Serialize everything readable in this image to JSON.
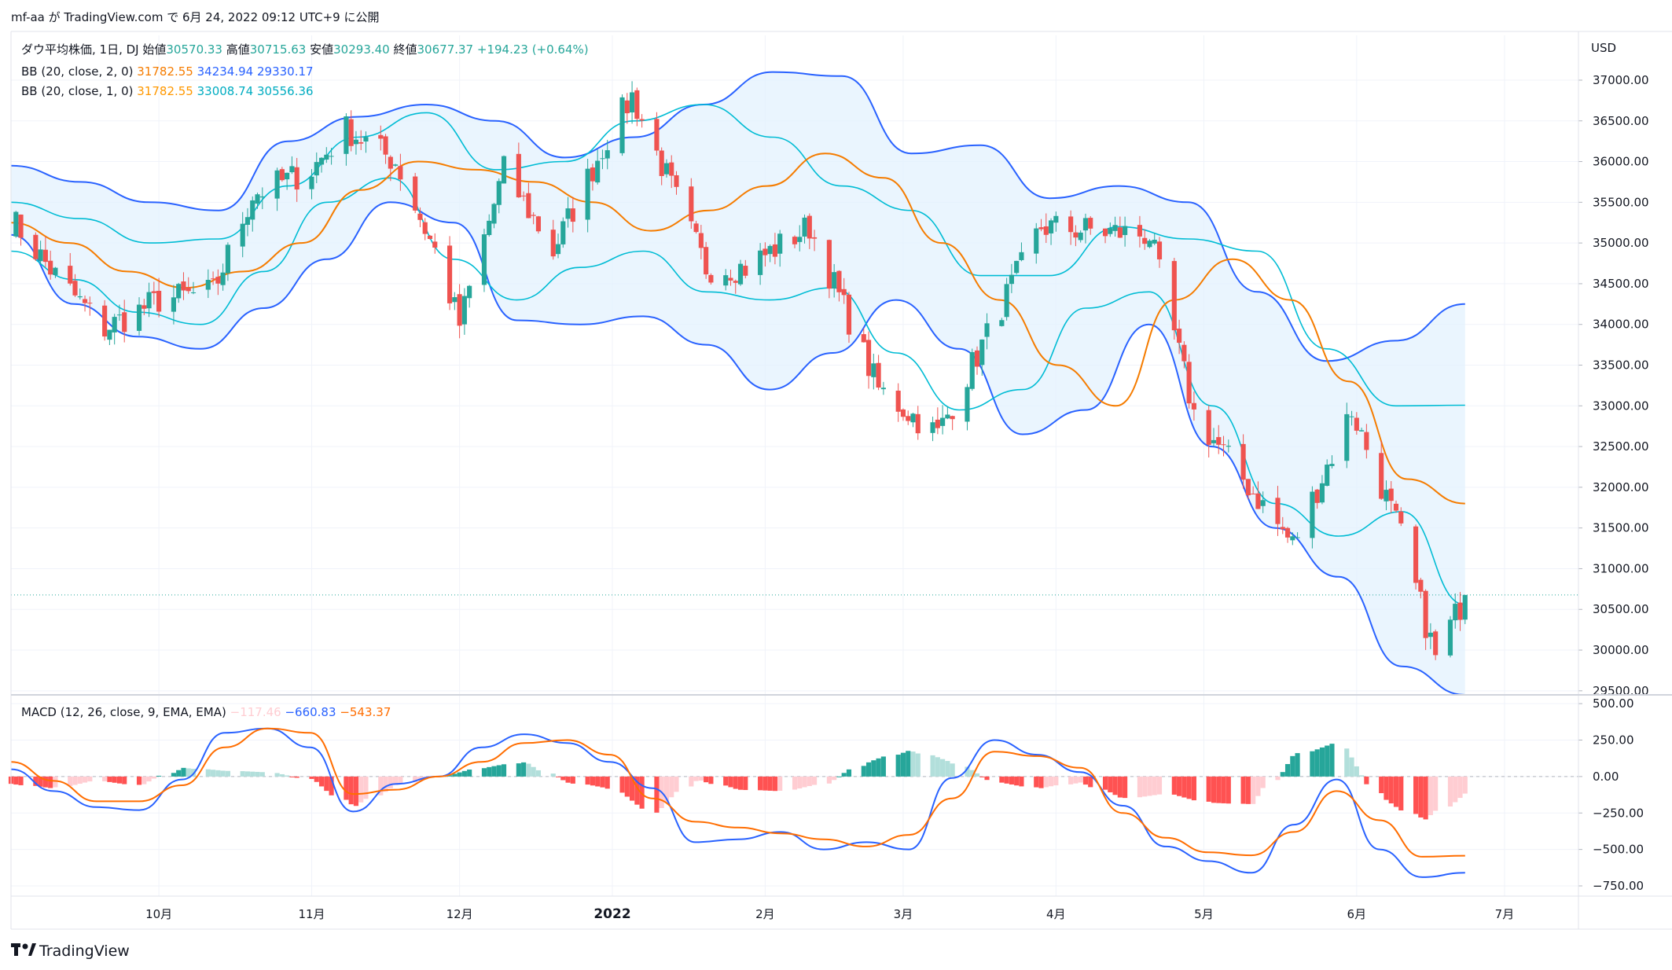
{
  "header": {
    "publish_text": "mf-aa が TradingView.com で 6月 24, 2022 09:12 UTC+9 に公開"
  },
  "legend": {
    "main": {
      "title": "ダウ平均株価, 1日, DJ",
      "open_label": "始値",
      "open_value": "30570.33",
      "high_label": "高値",
      "high_value": "30715.63",
      "low_label": "安値",
      "low_value": "30293.40",
      "close_label": "終値",
      "close_value": "30677.37",
      "change": "+194.23 (+0.64%)"
    },
    "bb2": {
      "label": "BB (20, close, 2, 0)",
      "basis": "31782.55",
      "upper": "34234.94",
      "lower": "29330.17"
    },
    "bb1": {
      "label": "BB (20, close, 1, 0)",
      "basis": "31782.55",
      "upper": "33008.74",
      "lower": "30556.36"
    },
    "macd": {
      "label": "MACD (12, 26, close, 9, EMA, EMA)",
      "hist": "−117.46",
      "macd": "−660.83",
      "signal": "−543.37"
    }
  },
  "footer": {
    "brand": "TradingView"
  },
  "colors": {
    "up": "#26a69a",
    "down": "#ef5350",
    "basis": "#f57c00",
    "bb2": "#2962ff",
    "bb1": "#00bcd4",
    "band_fill": "#e3f2fd",
    "macd_line": "#2962ff",
    "signal_line": "#ff6d00",
    "hist_up_strong": "#26a69a",
    "hist_up_weak": "#b2dfdb",
    "hist_down_strong": "#ff5252",
    "hist_down_weak": "#ffcdd2"
  },
  "chart_data": [
    {
      "type": "candlestick",
      "title": "ダウ平均株価, 1日, DJ",
      "currency": "USD",
      "ylim": [
        29450,
        37550
      ],
      "yticks": [
        "37000.00",
        "36500.00",
        "36000.00",
        "35500.00",
        "35000.00",
        "34500.00",
        "34000.00",
        "33500.00",
        "33000.00",
        "32500.00",
        "32000.00",
        "31500.00",
        "31000.00",
        "30500.00",
        "30000.00",
        "29500.00"
      ],
      "month_labels": [
        "10月",
        "11月",
        "12月",
        "2022",
        "2月",
        "3月",
        "4月",
        "5月",
        "6月",
        "7月"
      ],
      "last_price": 30677.37,
      "closes": [
        {
          "m": "2021-09-01",
          "v": 35300
        },
        {
          "m": "2021-09-10",
          "v": 34600
        },
        {
          "m": "2021-09-20",
          "v": 33950
        },
        {
          "m": "2021-10-01",
          "v": 34300
        },
        {
          "m": "2021-10-12",
          "v": 34400
        },
        {
          "m": "2021-10-20",
          "v": 35600
        },
        {
          "m": "2021-11-01",
          "v": 35900
        },
        {
          "m": "2021-11-08",
          "v": 36400
        },
        {
          "m": "2021-11-18",
          "v": 36000
        },
        {
          "m": "2021-11-26",
          "v": 34900
        },
        {
          "m": "2021-12-01",
          "v": 34000
        },
        {
          "m": "2021-12-10",
          "v": 35900
        },
        {
          "m": "2021-12-20",
          "v": 34900
        },
        {
          "m": "2021-12-31",
          "v": 36300
        },
        {
          "m": "2022-01-05",
          "v": 36800
        },
        {
          "m": "2022-01-20",
          "v": 34700
        },
        {
          "m": "2022-01-28",
          "v": 34700
        },
        {
          "m": "2022-02-10",
          "v": 35200
        },
        {
          "m": "2022-02-24",
          "v": 33200
        },
        {
          "m": "2022-03-08",
          "v": 32650
        },
        {
          "m": "2022-03-29",
          "v": 35200
        },
        {
          "m": "2022-04-20",
          "v": 35100
        },
        {
          "m": "2022-04-29",
          "v": 32900
        },
        {
          "m": "2022-05-19",
          "v": 31300
        },
        {
          "m": "2022-05-31",
          "v": 32950
        },
        {
          "m": "2022-06-10",
          "v": 31400
        },
        {
          "m": "2022-06-17",
          "v": 29900
        },
        {
          "m": "2022-06-23",
          "v": 30677
        }
      ]
    },
    {
      "type": "line",
      "title": "BB (20, close, 2, 0)",
      "series": [
        {
          "name": "basis",
          "last": 31782.55,
          "values": [
            35250,
            35000,
            34650,
            34450,
            34650,
            35000,
            35650,
            36000,
            35900,
            35750,
            35500,
            35150,
            35400,
            35700,
            36100,
            35800,
            35000,
            34300,
            33500,
            33000,
            34300,
            34800,
            34300,
            33300,
            32100,
            31800
          ]
        },
        {
          "name": "upper",
          "last": 34234.94,
          "values": [
            35950,
            35750,
            35500,
            35400,
            36250,
            36550,
            36700,
            36500,
            36050,
            36300,
            36700,
            37100,
            37050,
            36100,
            36200,
            35550,
            35700,
            35500,
            34400,
            33550,
            33800,
            34250
          ]
        },
        {
          "name": "lower",
          "last": 29330.17,
          "values": [
            35100,
            34250,
            33850,
            33700,
            34200,
            34800,
            35500,
            35250,
            34050,
            34000,
            34100,
            33750,
            33200,
            33650,
            34300,
            33700,
            32650,
            32950,
            34000,
            32500,
            31500,
            30900,
            29800,
            29450
          ]
        }
      ]
    },
    {
      "type": "line",
      "title": "BB (20, close, 1, 0)",
      "series": [
        {
          "name": "upper",
          "last": 33008.74,
          "values": [
            35500,
            35300,
            35000,
            35050,
            35700,
            36300,
            36600,
            35900,
            36000,
            36500,
            36700,
            36300,
            35700,
            35400,
            34600,
            34600,
            35200,
            35050,
            34900,
            33700,
            33000,
            33008
          ]
        },
        {
          "name": "lower",
          "last": 30556.36,
          "values": [
            34900,
            34550,
            34150,
            34000,
            34650,
            35500,
            35800,
            34800,
            34300,
            34700,
            34900,
            34400,
            34300,
            34450,
            33650,
            32950,
            33200,
            34200,
            34400,
            33000,
            31800,
            31400,
            31700,
            30556
          ]
        }
      ]
    },
    {
      "type": "bar",
      "title": "MACD (12, 26, close, 9, EMA, EMA)",
      "ylim": [
        -820,
        560
      ],
      "yticks": [
        "500.00",
        "250.00",
        "0.00",
        "−250.00",
        "−500.00",
        "−750.00"
      ],
      "histogram_last": -117.46,
      "macd_last": -660.83,
      "signal_last": -543.37,
      "macd_line": [
        50,
        -100,
        -210,
        -230,
        -20,
        300,
        330,
        200,
        -240,
        -50,
        0,
        200,
        290,
        230,
        100,
        -80,
        -450,
        -430,
        -380,
        -500,
        -450,
        -500,
        -10,
        250,
        150,
        30,
        -200,
        -480,
        -580,
        -660,
        -330,
        -20,
        -500,
        -690,
        -660
      ],
      "signal_line": [
        100,
        -30,
        -170,
        -170,
        -60,
        200,
        330,
        300,
        -120,
        -90,
        0,
        100,
        230,
        250,
        150,
        -150,
        -310,
        -350,
        -390,
        -430,
        -480,
        -400,
        -150,
        170,
        140,
        60,
        -250,
        -420,
        -520,
        -540,
        -380,
        -100,
        -300,
        -550,
        -543
      ],
      "histogram": [
        -50,
        -80,
        -30,
        -60,
        60,
        40,
        30,
        -20,
        -210,
        -60,
        0,
        60,
        100,
        -40,
        -80,
        -250,
        -20,
        -90,
        -100,
        -50,
        100,
        180,
        100,
        -40,
        -80,
        -40,
        -150,
        -120,
        -180,
        -190,
        150,
        230,
        -150,
        -300,
        -117
      ]
    }
  ]
}
